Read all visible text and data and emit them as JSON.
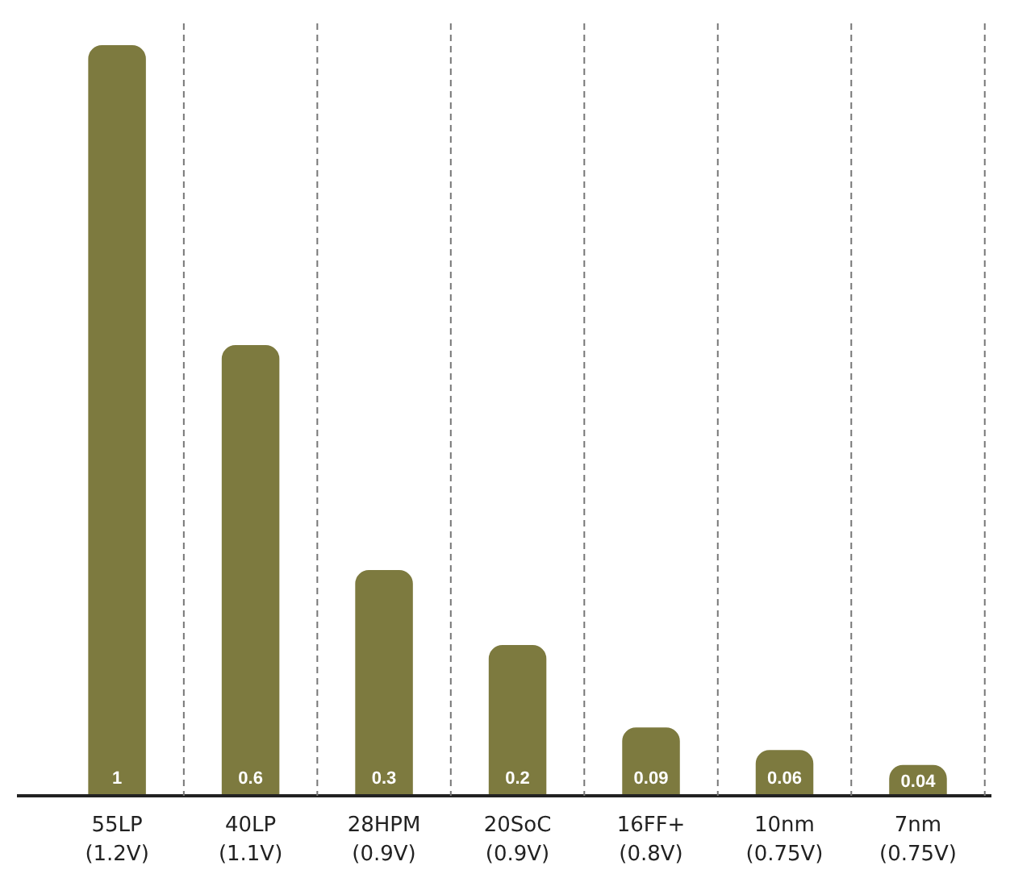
{
  "chart_data": {
    "type": "bar",
    "categories": [
      "55LP\n(1.2V)",
      "40LP\n(1.1V)",
      "28HPM\n(0.9V)",
      "20SoC\n(0.9V)",
      "16FF+\n(0.8V)",
      "10nm\n(0.75V)",
      "7nm\n(0.75V)"
    ],
    "values": [
      1,
      0.6,
      0.3,
      0.2,
      0.09,
      0.06,
      0.04
    ],
    "color": "#7d7a3f",
    "data_labels": true,
    "grid": "x"
  }
}
